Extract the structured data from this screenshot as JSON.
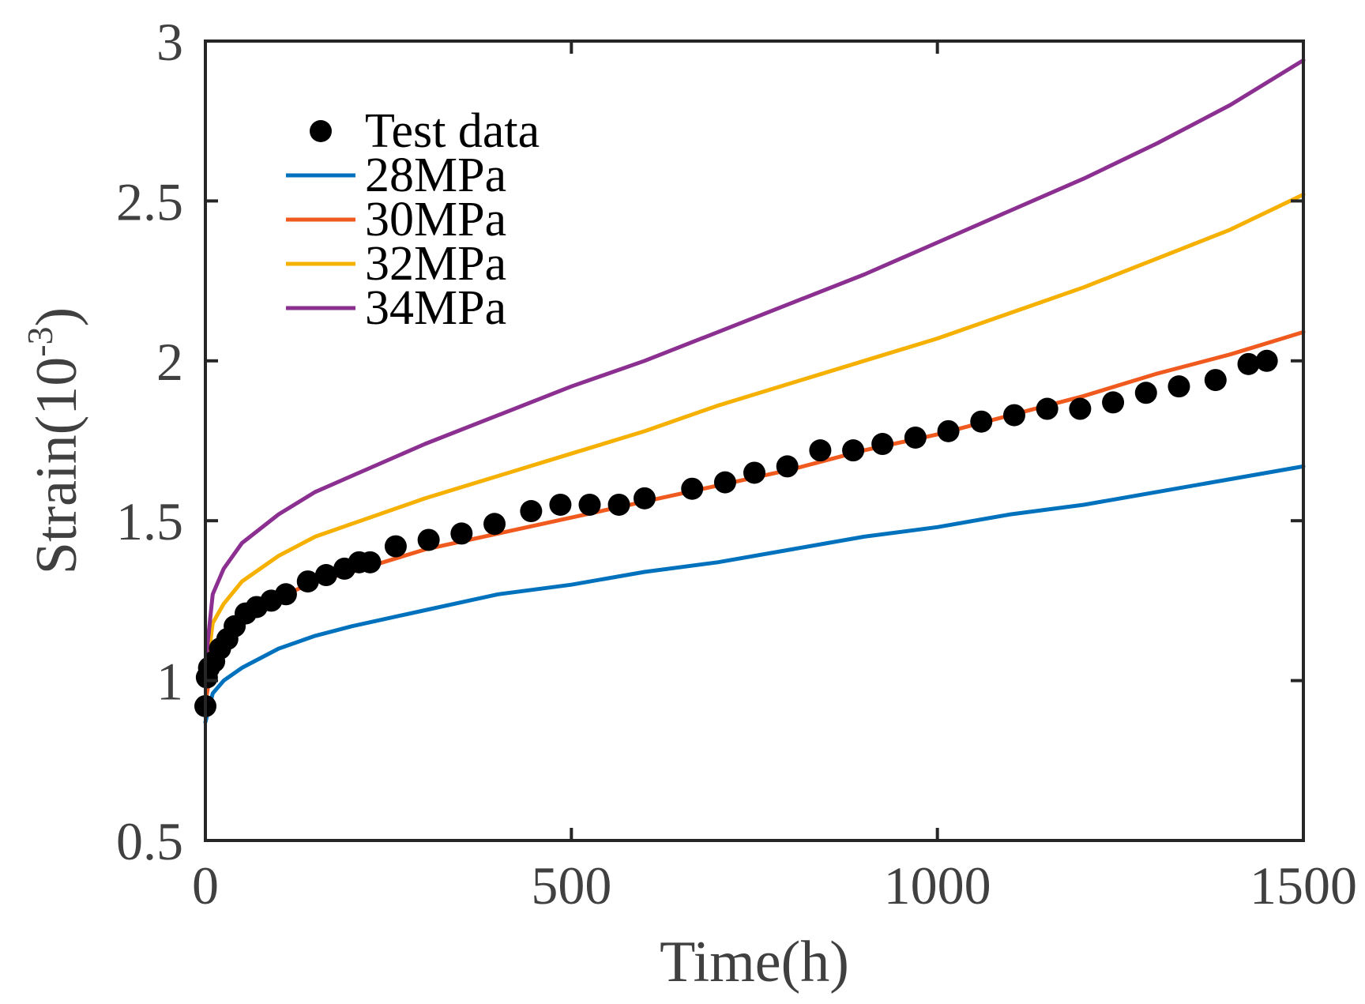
{
  "chart_data": {
    "type": "line",
    "title": "",
    "xlabel": "Time(h)",
    "ylabel": "Strain(10",
    "ylabel_sup": "-3",
    "ylabel_close": ")",
    "xlim": [
      0,
      1500
    ],
    "ylim": [
      0.5,
      3
    ],
    "xticks": [
      0,
      500,
      1000,
      1500
    ],
    "xtick_labels": [
      "0",
      "500",
      "1000",
      "1500"
    ],
    "yticks": [
      0.5,
      1,
      1.5,
      2,
      2.5,
      3
    ],
    "ytick_labels": [
      "0.5",
      "1",
      "1.5",
      "2",
      "2.5",
      "3"
    ],
    "grid": false,
    "legend_position": "top-left",
    "scatter": {
      "name": "Test data",
      "color": "#000000",
      "x": [
        0,
        2,
        5,
        12,
        20,
        30,
        40,
        55,
        70,
        90,
        110,
        140,
        165,
        190,
        210,
        225,
        260,
        305,
        350,
        395,
        445,
        485,
        525,
        565,
        600,
        665,
        710,
        750,
        795,
        840,
        885,
        925,
        970,
        1015,
        1060,
        1105,
        1150,
        1195,
        1240,
        1285,
        1330,
        1380,
        1425,
        1450
      ],
      "y": [
        0.92,
        1.01,
        1.04,
        1.06,
        1.1,
        1.13,
        1.17,
        1.21,
        1.23,
        1.25,
        1.27,
        1.31,
        1.33,
        1.35,
        1.37,
        1.37,
        1.42,
        1.44,
        1.46,
        1.49,
        1.53,
        1.55,
        1.55,
        1.55,
        1.57,
        1.6,
        1.62,
        1.65,
        1.67,
        1.72,
        1.72,
        1.74,
        1.76,
        1.78,
        1.81,
        1.83,
        1.85,
        1.85,
        1.87,
        1.9,
        1.92,
        1.94,
        1.99,
        2.0
      ]
    },
    "series": [
      {
        "name": "28MPa",
        "color": "#0072BD",
        "x": [
          0,
          10,
          25,
          50,
          100,
          150,
          200,
          300,
          400,
          500,
          600,
          700,
          800,
          900,
          1000,
          1100,
          1200,
          1300,
          1400,
          1500
        ],
        "y": [
          0.87,
          0.96,
          1.0,
          1.04,
          1.1,
          1.14,
          1.17,
          1.22,
          1.27,
          1.3,
          1.34,
          1.37,
          1.41,
          1.45,
          1.48,
          1.52,
          1.55,
          1.59,
          1.63,
          1.67
        ]
      },
      {
        "name": "30MPa",
        "color": "#F05A1E",
        "x": [
          0,
          10,
          25,
          50,
          100,
          150,
          200,
          300,
          400,
          500,
          600,
          700,
          800,
          900,
          1000,
          1100,
          1200,
          1300,
          1400,
          1500
        ],
        "y": [
          0.93,
          1.07,
          1.12,
          1.18,
          1.26,
          1.31,
          1.34,
          1.41,
          1.46,
          1.51,
          1.56,
          1.61,
          1.66,
          1.72,
          1.77,
          1.83,
          1.89,
          1.96,
          2.02,
          2.09
        ]
      },
      {
        "name": "32MPa",
        "color": "#F5B000",
        "x": [
          0,
          10,
          25,
          50,
          100,
          150,
          200,
          300,
          400,
          500,
          600,
          700,
          800,
          900,
          1000,
          1100,
          1200,
          1300,
          1400,
          1500
        ],
        "y": [
          1.0,
          1.18,
          1.24,
          1.31,
          1.39,
          1.45,
          1.49,
          1.57,
          1.64,
          1.71,
          1.78,
          1.86,
          1.93,
          2.0,
          2.07,
          2.15,
          2.23,
          2.32,
          2.41,
          2.52
        ]
      },
      {
        "name": "34MPa",
        "color": "#8B2F90",
        "x": [
          0,
          10,
          25,
          50,
          100,
          150,
          200,
          300,
          400,
          500,
          600,
          700,
          800,
          900,
          1000,
          1100,
          1200,
          1300,
          1400,
          1500
        ],
        "y": [
          1.05,
          1.27,
          1.35,
          1.43,
          1.52,
          1.59,
          1.64,
          1.74,
          1.83,
          1.92,
          2.0,
          2.09,
          2.18,
          2.27,
          2.37,
          2.47,
          2.57,
          2.68,
          2.8,
          2.94
        ]
      }
    ]
  }
}
